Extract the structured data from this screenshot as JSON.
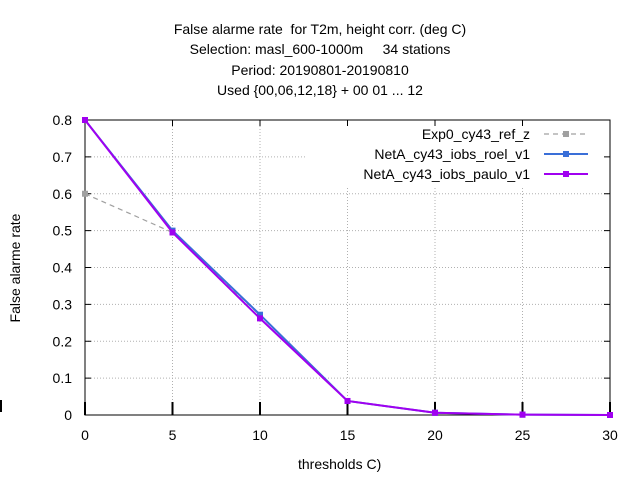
{
  "chart_data": {
    "type": "line",
    "title_lines": [
      "False alarme rate  for T2m, height corr. (deg C)",
      "Selection: masl_600-1000m     34 stations",
      "Period: 20190801-20190810",
      "Used {00,06,12,18} + 00 01 ... 12"
    ],
    "xlabel": "thresholds C)",
    "ylabel": "False alarme rate",
    "xlim": [
      0,
      30
    ],
    "ylim": [
      0,
      0.8
    ],
    "xticks": [
      "0",
      "5",
      "10",
      "15",
      "20",
      "25",
      "30"
    ],
    "yticks": [
      "0",
      "0.1",
      "0.2",
      "0.3",
      "0.4",
      "0.5",
      "0.6",
      "0.7",
      "0.8"
    ],
    "grid": true,
    "legend_position": "top-right",
    "series": [
      {
        "name": "Exp0_cy43_ref_z",
        "color": "#a0a0a0",
        "dash": true,
        "x": [
          0,
          5,
          10,
          15,
          20,
          25,
          30
        ],
        "y": [
          0.6,
          0.495,
          0.27,
          0.038,
          0.006,
          0.001,
          0.0
        ]
      },
      {
        "name": "NetA_cy43_iobs_roel_v1",
        "color": "#3a6fd8",
        "dash": false,
        "x": [
          0,
          5,
          10,
          15,
          20,
          25,
          30
        ],
        "y": [
          0.8,
          0.5,
          0.272,
          0.038,
          0.006,
          0.001,
          0.0
        ]
      },
      {
        "name": "NetA_cy43_iobs_paulo_v1",
        "color": "#a000f0",
        "dash": false,
        "x": [
          0,
          5,
          10,
          15,
          20,
          25,
          30
        ],
        "y": [
          0.8,
          0.495,
          0.262,
          0.038,
          0.006,
          0.001,
          0.0
        ]
      }
    ]
  }
}
